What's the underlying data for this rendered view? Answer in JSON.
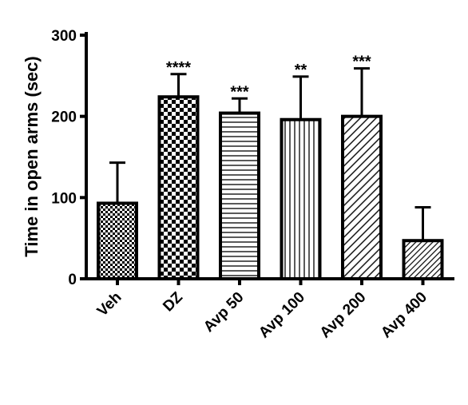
{
  "chart_data": {
    "type": "bar",
    "categories": [
      "Veh",
      "DZ",
      "Avp 50",
      "Avp 100",
      "Avp 200",
      "Avp 400"
    ],
    "values": [
      93,
      224,
      204,
      196,
      200,
      47
    ],
    "error_upper": [
      143,
      252,
      222,
      249,
      259,
      88
    ],
    "significance": [
      "",
      "****",
      "***",
      "**",
      "***",
      ""
    ],
    "patterns": [
      "fine-checker",
      "coarse-checker",
      "horizontal-lines",
      "vertical-lines",
      "diagonal-lines",
      "diagonal-lines-fine"
    ],
    "title": "",
    "xlabel": "",
    "ylabel": "Time in open arms (sec)",
    "ylim": [
      0,
      300
    ],
    "yticks": [
      0,
      100,
      200,
      300
    ],
    "grid": false,
    "colors": {
      "bar_fill": "#ffffff",
      "stroke": "#000000"
    }
  }
}
